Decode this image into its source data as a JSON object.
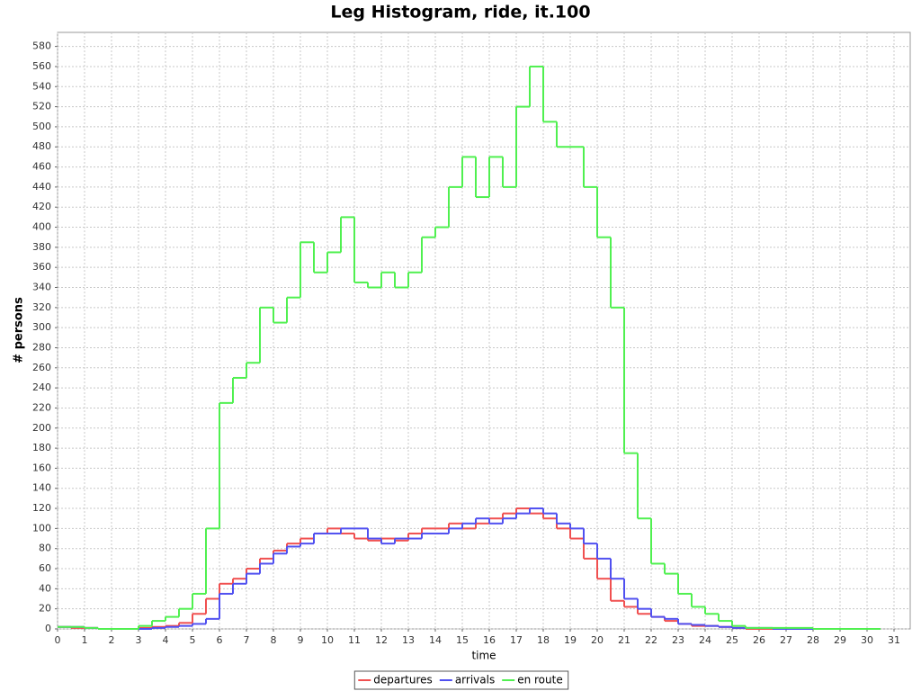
{
  "chart_data": {
    "type": "step",
    "title": "Leg Histogram, ride, it.100",
    "xlabel": "time",
    "ylabel": "# persons",
    "x": [
      0,
      0.5,
      1,
      1.5,
      2,
      2.5,
      3,
      3.5,
      4,
      4.5,
      5,
      5.5,
      6,
      6.5,
      7,
      7.5,
      8,
      8.5,
      9,
      9.5,
      10,
      10.5,
      11,
      11.5,
      12,
      12.5,
      13,
      13.5,
      14,
      14.5,
      15,
      15.5,
      16,
      16.5,
      17,
      17.5,
      18,
      18.5,
      19,
      19.5,
      20,
      20.5,
      21,
      21.5,
      22,
      22.5,
      23,
      23.5,
      24,
      24.5,
      25,
      25.5,
      26,
      26.5,
      27,
      27.5,
      28,
      28.5,
      29,
      29.5,
      30
    ],
    "step": 0.5,
    "series": [
      {
        "name": "departures",
        "color": "#f05050",
        "values": [
          2,
          1,
          1,
          0,
          0,
          0,
          1,
          2,
          3,
          6,
          15,
          30,
          45,
          50,
          60,
          70,
          78,
          85,
          90,
          95,
          100,
          95,
          90,
          88,
          90,
          88,
          95,
          100,
          100,
          105,
          100,
          105,
          110,
          115,
          120,
          115,
          110,
          100,
          90,
          70,
          50,
          28,
          22,
          15,
          12,
          8,
          5,
          3,
          3,
          2,
          1,
          0,
          0,
          0,
          0,
          0,
          0,
          0,
          0,
          0,
          0
        ]
      },
      {
        "name": "arrivals",
        "color": "#5050f0",
        "values": [
          2,
          2,
          1,
          0,
          0,
          0,
          0,
          1,
          2,
          3,
          5,
          10,
          35,
          45,
          55,
          65,
          75,
          82,
          85,
          95,
          95,
          100,
          100,
          90,
          85,
          90,
          90,
          95,
          95,
          100,
          105,
          110,
          105,
          110,
          115,
          120,
          115,
          105,
          100,
          85,
          70,
          50,
          30,
          20,
          12,
          10,
          5,
          4,
          3,
          2,
          1,
          1,
          1,
          0,
          0,
          0,
          0,
          0,
          0,
          0,
          0
        ]
      },
      {
        "name": "en route",
        "color": "#50f050",
        "values": [
          2,
          2,
          1,
          0,
          0,
          0,
          3,
          8,
          12,
          20,
          35,
          100,
          225,
          250,
          265,
          320,
          305,
          330,
          385,
          355,
          375,
          410,
          345,
          340,
          355,
          340,
          355,
          390,
          400,
          440,
          470,
          430,
          470,
          440,
          520,
          560,
          505,
          480,
          480,
          440,
          390,
          320,
          175,
          110,
          65,
          55,
          35,
          22,
          15,
          8,
          3,
          1,
          1,
          1,
          1,
          1,
          0,
          0,
          0,
          0,
          0
        ]
      }
    ],
    "xlim": [
      0,
      31.6
    ],
    "ylim": [
      0,
      594
    ],
    "xticks": [
      0,
      1,
      2,
      3,
      4,
      5,
      6,
      7,
      8,
      9,
      10,
      11,
      12,
      13,
      14,
      15,
      16,
      17,
      18,
      19,
      20,
      21,
      22,
      23,
      24,
      25,
      26,
      27,
      28,
      29,
      30,
      31
    ],
    "yticks": [
      0,
      20,
      40,
      60,
      80,
      100,
      120,
      140,
      160,
      180,
      200,
      220,
      240,
      260,
      280,
      300,
      320,
      340,
      360,
      380,
      400,
      420,
      440,
      460,
      480,
      500,
      520,
      540,
      560,
      580
    ],
    "grid": true,
    "legend": "bottom"
  }
}
